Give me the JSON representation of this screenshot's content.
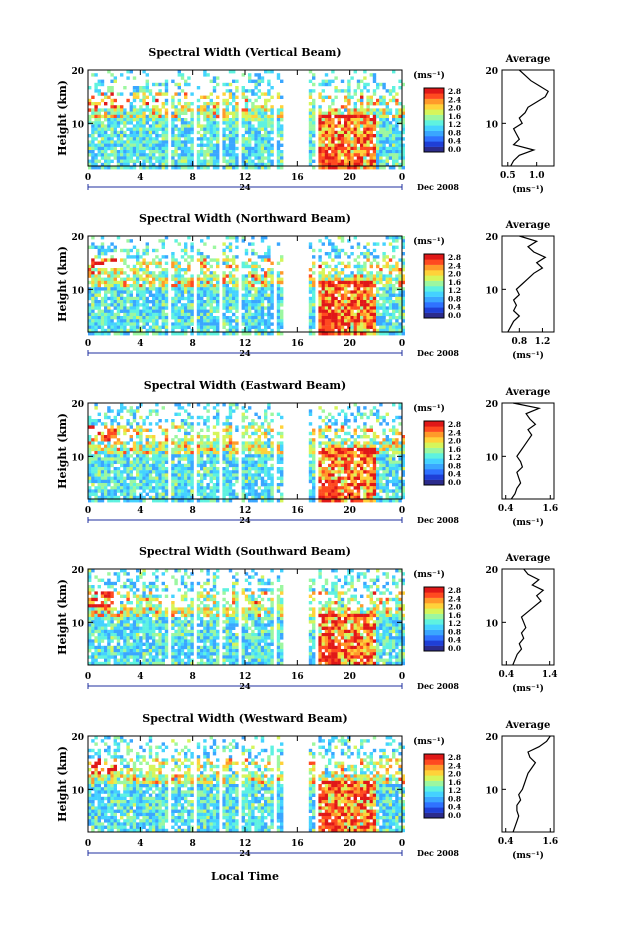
{
  "figure": {
    "xlabel": "Local Time",
    "date_label": "Dec 2008",
    "day_label": "24",
    "cbar_unit": "(ms⁻¹)",
    "avg_title": "Average",
    "avg_unit": "(ms⁻¹)",
    "ylabel": "Height (km)"
  },
  "colormap": [
    "#2b2b8c",
    "#1f3fd6",
    "#2f72ff",
    "#3aa6ff",
    "#44d2ff",
    "#5ef2e0",
    "#9cf7a0",
    "#d6f55a",
    "#ffd23a",
    "#ff9a2a",
    "#ff4a20",
    "#e01818"
  ],
  "chart_data": [
    {
      "type": "heatmap",
      "title": "Spectral Width (Vertical Beam)",
      "xlabel": "Local Time",
      "ylabel": "Height (km)",
      "xticks": [
        "0",
        "4",
        "8",
        "12",
        "16",
        "20",
        "0"
      ],
      "yticks": [
        "20",
        "10"
      ],
      "xlim": [
        0,
        24
      ],
      "ylim": [
        2,
        20
      ],
      "colorbar_ticks": [
        "2.8",
        "2.4",
        "2.0",
        "1.6",
        "1.2",
        "0.8",
        "0.4",
        "0.0"
      ],
      "colorbar_range": [
        0,
        2.8
      ],
      "data_gaps_local_time": [
        [
          5.9,
          6.3
        ],
        [
          7.9,
          8.2
        ],
        [
          9.8,
          10.1
        ],
        [
          11.3,
          11.7
        ],
        [
          14.0,
          14.3
        ],
        [
          14.7,
          16.8
        ],
        [
          17.2,
          17.6
        ]
      ],
      "average_profile": {
        "xticks": [
          "0.5",
          "1.0"
        ],
        "xlim": [
          0.4,
          1.3
        ],
        "height_km": [
          2,
          3,
          4,
          5,
          6,
          7,
          8,
          9,
          10,
          11,
          12,
          13,
          14,
          15,
          16,
          17,
          18,
          19,
          20
        ],
        "value": [
          0.55,
          0.6,
          0.7,
          0.95,
          0.6,
          0.7,
          0.65,
          0.6,
          0.75,
          0.7,
          0.8,
          0.85,
          1.0,
          1.15,
          1.2,
          1.05,
          0.9,
          0.8,
          0.7
        ]
      }
    },
    {
      "type": "heatmap",
      "title": "Spectral Width (Northward Beam)",
      "xlabel": "Local Time",
      "ylabel": "Height (km)",
      "xticks": [
        "0",
        "4",
        "8",
        "12",
        "16",
        "20",
        "0"
      ],
      "yticks": [
        "20",
        "10"
      ],
      "xlim": [
        0,
        24
      ],
      "ylim": [
        2,
        20
      ],
      "colorbar_ticks": [
        "2.8",
        "2.4",
        "2.0",
        "1.6",
        "1.2",
        "0.8",
        "0.4",
        "0.0"
      ],
      "colorbar_range": [
        0,
        2.8
      ],
      "data_gaps_local_time": [
        [
          5.9,
          6.3
        ],
        [
          7.9,
          8.2
        ],
        [
          9.8,
          10.1
        ],
        [
          11.3,
          11.7
        ],
        [
          14.0,
          14.3
        ],
        [
          14.7,
          16.8
        ],
        [
          17.2,
          17.6
        ]
      ],
      "average_profile": {
        "xticks": [
          "0.8",
          "1.2"
        ],
        "xlim": [
          0.5,
          1.4
        ],
        "height_km": [
          2,
          3,
          4,
          5,
          6,
          7,
          8,
          9,
          10,
          11,
          12,
          13,
          14,
          15,
          16,
          17,
          18,
          19,
          20
        ],
        "value": [
          0.6,
          0.65,
          0.7,
          0.8,
          0.7,
          0.75,
          0.7,
          0.8,
          0.75,
          0.85,
          0.95,
          1.05,
          1.2,
          1.1,
          1.25,
          1.05,
          0.95,
          1.1,
          0.8
        ]
      }
    },
    {
      "type": "heatmap",
      "title": "Spectral Width (Eastward Beam)",
      "xlabel": "Local Time",
      "ylabel": "Height (km)",
      "xticks": [
        "0",
        "4",
        "8",
        "12",
        "16",
        "20",
        "0"
      ],
      "yticks": [
        "20",
        "10"
      ],
      "xlim": [
        0,
        24
      ],
      "ylim": [
        2,
        20
      ],
      "colorbar_ticks": [
        "2.8",
        "2.4",
        "2.0",
        "1.6",
        "1.2",
        "0.8",
        "0.4",
        "0.0"
      ],
      "colorbar_range": [
        0,
        2.8
      ],
      "data_gaps_local_time": [
        [
          5.9,
          6.3
        ],
        [
          7.9,
          8.2
        ],
        [
          9.8,
          10.1
        ],
        [
          11.3,
          11.7
        ],
        [
          14.0,
          14.3
        ],
        [
          14.7,
          16.8
        ],
        [
          17.2,
          17.6
        ]
      ],
      "average_profile": {
        "xticks": [
          "0.4",
          "1.6"
        ],
        "xlim": [
          0.3,
          1.7
        ],
        "height_km": [
          2,
          3,
          4,
          5,
          6,
          7,
          8,
          9,
          10,
          11,
          12,
          13,
          14,
          15,
          16,
          17,
          18,
          19,
          20
        ],
        "value": [
          0.55,
          0.65,
          0.7,
          0.8,
          0.75,
          0.7,
          0.85,
          0.8,
          0.7,
          0.8,
          0.9,
          1.0,
          1.1,
          1.0,
          1.2,
          1.05,
          0.95,
          1.3,
          0.6
        ]
      }
    },
    {
      "type": "heatmap",
      "title": "Spectral Width (Southward Beam)",
      "xlabel": "Local Time",
      "ylabel": "Height (km)",
      "xticks": [
        "0",
        "4",
        "8",
        "12",
        "16",
        "20",
        "0"
      ],
      "yticks": [
        "20",
        "10"
      ],
      "xlim": [
        0,
        24
      ],
      "ylim": [
        2,
        20
      ],
      "colorbar_ticks": [
        "2.8",
        "2.4",
        "2.0",
        "1.6",
        "1.2",
        "0.8",
        "0.4",
        "0.0"
      ],
      "colorbar_range": [
        0,
        2.8
      ],
      "data_gaps_local_time": [
        [
          5.9,
          6.3
        ],
        [
          7.9,
          8.2
        ],
        [
          9.8,
          10.1
        ],
        [
          11.3,
          11.7
        ],
        [
          14.0,
          14.3
        ],
        [
          14.7,
          16.8
        ],
        [
          17.2,
          17.6
        ]
      ],
      "average_profile": {
        "xticks": [
          "0.4",
          "1.4"
        ],
        "xlim": [
          0.3,
          1.5
        ],
        "height_km": [
          2,
          3,
          4,
          5,
          6,
          7,
          8,
          9,
          10,
          11,
          12,
          13,
          14,
          15,
          16,
          17,
          18,
          19,
          20
        ],
        "value": [
          0.55,
          0.6,
          0.65,
          0.75,
          0.7,
          0.8,
          0.75,
          0.85,
          0.8,
          0.75,
          0.9,
          1.05,
          1.2,
          1.1,
          1.25,
          1.0,
          1.15,
          0.9,
          0.8
        ]
      }
    },
    {
      "type": "heatmap",
      "title": "Spectral Width (Westward Beam)",
      "xlabel": "Local Time",
      "ylabel": "Height (km)",
      "xticks": [
        "0",
        "4",
        "8",
        "12",
        "16",
        "20",
        "0"
      ],
      "yticks": [
        "20",
        "10"
      ],
      "xlim": [
        0,
        24
      ],
      "ylim": [
        2,
        20
      ],
      "colorbar_ticks": [
        "2.8",
        "2.4",
        "2.0",
        "1.6",
        "1.2",
        "0.8",
        "0.4",
        "0.0"
      ],
      "colorbar_range": [
        0,
        2.8
      ],
      "data_gaps_local_time": [
        [
          5.9,
          6.3
        ],
        [
          7.9,
          8.2
        ],
        [
          9.8,
          10.1
        ],
        [
          11.3,
          11.7
        ],
        [
          14.0,
          14.3
        ],
        [
          14.7,
          16.8
        ],
        [
          17.2,
          17.6
        ]
      ],
      "average_profile": {
        "xticks": [
          "0.4",
          "1.6"
        ],
        "xlim": [
          0.3,
          1.7
        ],
        "height_km": [
          2,
          3,
          4,
          5,
          6,
          7,
          8,
          9,
          10,
          11,
          12,
          13,
          14,
          15,
          16,
          17,
          18,
          19,
          20
        ],
        "value": [
          0.6,
          0.65,
          0.7,
          0.75,
          0.7,
          0.7,
          0.8,
          0.75,
          0.85,
          0.9,
          0.95,
          1.0,
          1.1,
          1.2,
          1.05,
          1.0,
          1.3,
          1.5,
          1.6
        ]
      }
    }
  ]
}
